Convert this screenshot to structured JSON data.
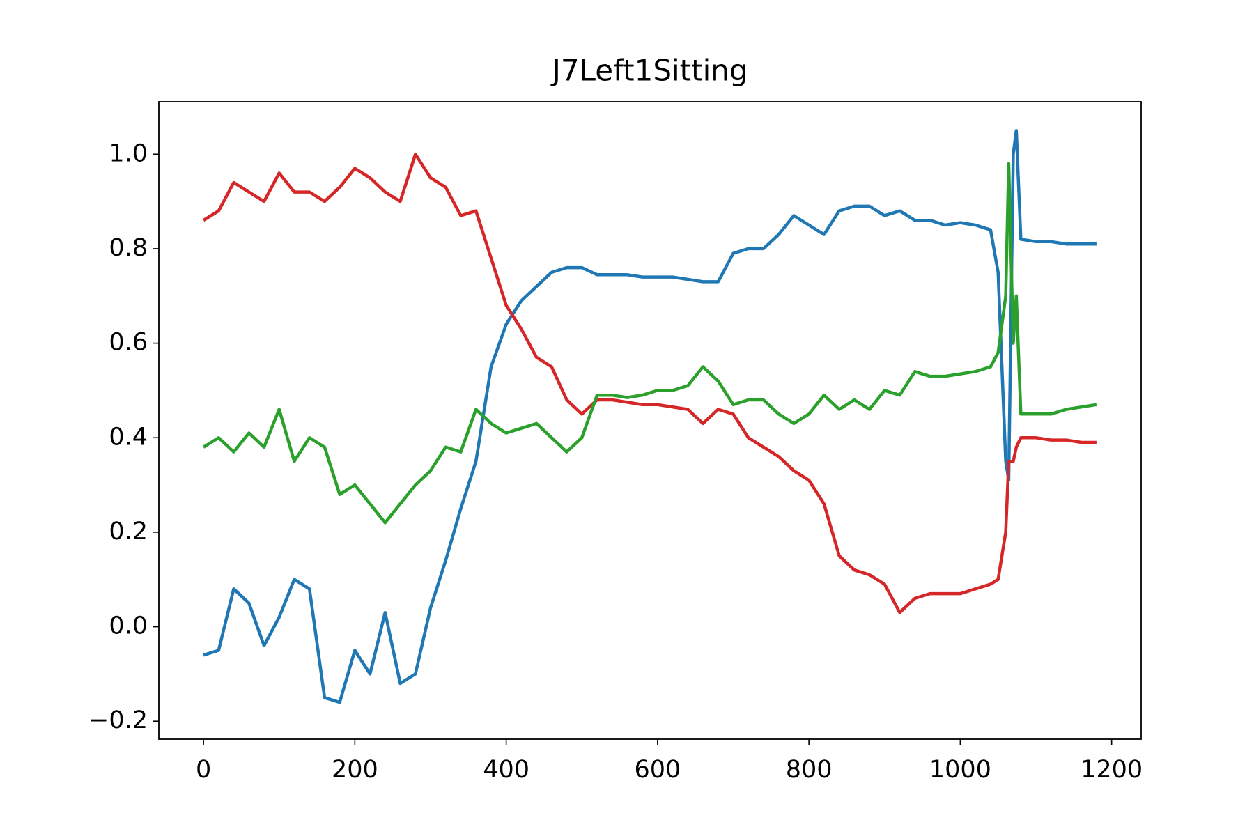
{
  "chart_data": {
    "type": "line",
    "title": "J7Left1Sitting",
    "x": [
      0,
      20,
      40,
      60,
      80,
      100,
      120,
      140,
      160,
      180,
      200,
      220,
      240,
      260,
      280,
      300,
      320,
      340,
      360,
      380,
      400,
      420,
      440,
      460,
      480,
      500,
      520,
      540,
      560,
      580,
      600,
      620,
      640,
      660,
      680,
      700,
      720,
      740,
      760,
      780,
      800,
      820,
      840,
      860,
      880,
      900,
      920,
      940,
      960,
      980,
      1000,
      1020,
      1040,
      1050,
      1060,
      1064,
      1070,
      1074,
      1080,
      1100,
      1120,
      1140,
      1160,
      1180
    ],
    "series": [
      {
        "color": "#1f77b4",
        "values": [
          -0.06,
          -0.05,
          0.08,
          0.05,
          -0.04,
          0.02,
          0.1,
          0.08,
          -0.15,
          -0.16,
          -0.05,
          -0.1,
          0.03,
          -0.12,
          -0.1,
          0.04,
          0.14,
          0.25,
          0.35,
          0.55,
          0.64,
          0.69,
          0.72,
          0.75,
          0.76,
          0.76,
          0.745,
          0.745,
          0.745,
          0.74,
          0.74,
          0.74,
          0.735,
          0.73,
          0.73,
          0.79,
          0.8,
          0.8,
          0.83,
          0.87,
          0.85,
          0.83,
          0.88,
          0.89,
          0.89,
          0.87,
          0.88,
          0.86,
          0.86,
          0.85,
          0.855,
          0.85,
          0.84,
          0.75,
          0.35,
          0.31,
          1.0,
          1.05,
          0.82,
          0.815,
          0.815,
          0.81,
          0.81,
          0.81
        ]
      },
      {
        "color": "#d62728",
        "values": [
          0.86,
          0.88,
          0.94,
          0.92,
          0.9,
          0.96,
          0.92,
          0.92,
          0.9,
          0.93,
          0.97,
          0.95,
          0.92,
          0.9,
          1.0,
          0.95,
          0.93,
          0.87,
          0.88,
          0.78,
          0.68,
          0.63,
          0.57,
          0.55,
          0.48,
          0.45,
          0.48,
          0.48,
          0.475,
          0.47,
          0.47,
          0.465,
          0.46,
          0.43,
          0.46,
          0.45,
          0.4,
          0.38,
          0.36,
          0.33,
          0.31,
          0.26,
          0.15,
          0.12,
          0.11,
          0.09,
          0.03,
          0.06,
          0.07,
          0.07,
          0.07,
          0.08,
          0.09,
          0.1,
          0.2,
          0.35,
          0.35,
          0.38,
          0.4,
          0.4,
          0.395,
          0.395,
          0.39,
          0.39
        ]
      },
      {
        "color": "#2ca02c",
        "values": [
          0.38,
          0.4,
          0.37,
          0.41,
          0.38,
          0.46,
          0.35,
          0.4,
          0.38,
          0.28,
          0.3,
          0.26,
          0.22,
          0.26,
          0.3,
          0.33,
          0.38,
          0.37,
          0.46,
          0.43,
          0.41,
          0.42,
          0.43,
          0.4,
          0.37,
          0.4,
          0.49,
          0.49,
          0.485,
          0.49,
          0.5,
          0.5,
          0.51,
          0.55,
          0.52,
          0.47,
          0.48,
          0.48,
          0.45,
          0.43,
          0.45,
          0.49,
          0.46,
          0.48,
          0.46,
          0.5,
          0.49,
          0.54,
          0.53,
          0.53,
          0.535,
          0.54,
          0.55,
          0.58,
          0.7,
          0.98,
          0.6,
          0.7,
          0.45,
          0.45,
          0.45,
          0.46,
          0.465,
          0.47
        ]
      }
    ],
    "xlim": [
      -59,
      1239
    ],
    "ylim": [
      -0.238,
      1.111
    ],
    "xticks": [
      0,
      200,
      400,
      600,
      800,
      1000,
      1200
    ],
    "yticks": [
      {
        "value": -0.2,
        "label": "−0.2"
      },
      {
        "value": 0,
        "label": "0.0"
      },
      0.2,
      0.4,
      0.6,
      0.8,
      {
        "value": 1.0,
        "label": "1.0"
      }
    ]
  }
}
